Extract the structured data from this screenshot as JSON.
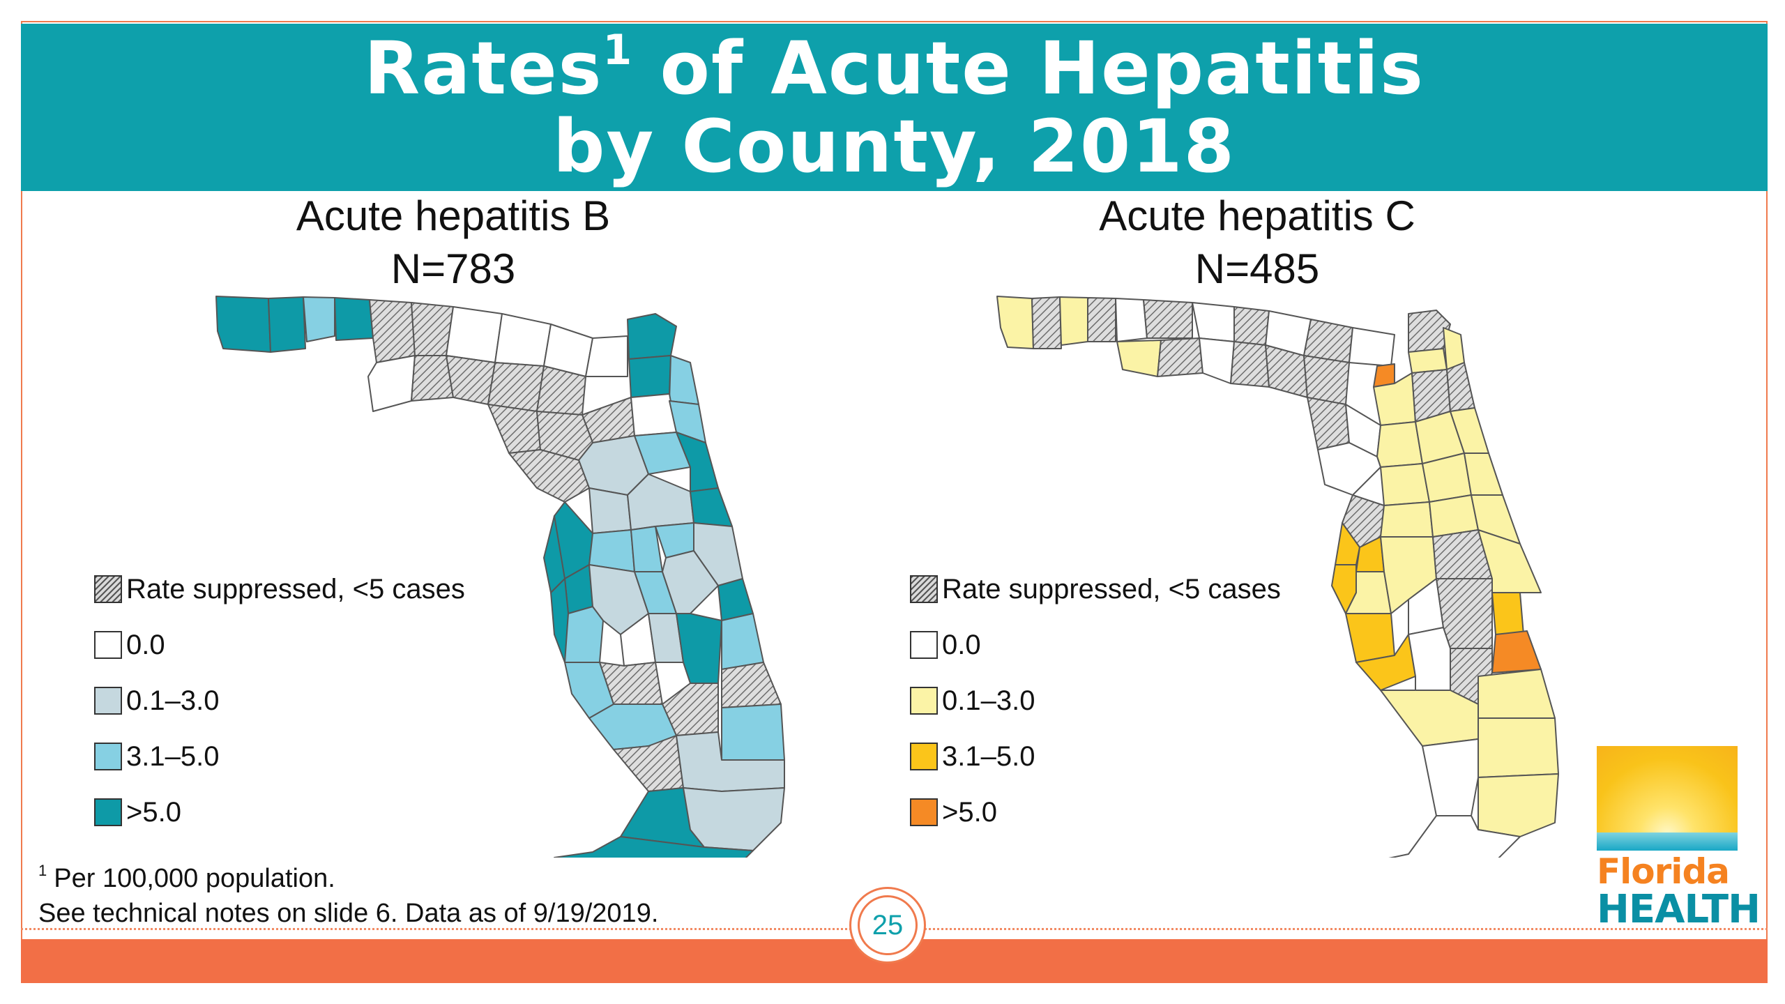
{
  "title": {
    "line1_before_sup": "Rates",
    "line1_sup": "1",
    "line1_after_sup": " of Acute Hepatitis",
    "line2": "by County, 2018"
  },
  "maps": [
    {
      "heading": "Acute hepatitis B",
      "n_label": "N=783",
      "legend": [
        {
          "label": "Rate suppressed, <5 cases",
          "swatch": "hatch"
        },
        {
          "label": "0.0",
          "color": "#ffffff"
        },
        {
          "label": "0.1–3.0",
          "color": "#c5d8df"
        },
        {
          "label": "3.1–5.0",
          "color": "#86d0e3"
        },
        {
          "label": ">5.0",
          "color": "#0e9aa7"
        }
      ]
    },
    {
      "heading": "Acute hepatitis C",
      "n_label": "N=485",
      "legend": [
        {
          "label": "Rate suppressed, <5 cases",
          "swatch": "hatch"
        },
        {
          "label": "0.0",
          "color": "#ffffff"
        },
        {
          "label": "0.1–3.0",
          "color": "#fbf3a6"
        },
        {
          "label": "3.1–5.0",
          "color": "#fbc51a"
        },
        {
          "label": ">5.0",
          "color": "#f58a25"
        }
      ]
    }
  ],
  "footnote": {
    "sup": "1",
    "line1": "Per 100,000 population.",
    "line2": "See technical notes on slide 6. Data as of 9/19/2019."
  },
  "page_number": "25",
  "logo": {
    "word1": "Florida",
    "word2": "HEALTH"
  }
}
